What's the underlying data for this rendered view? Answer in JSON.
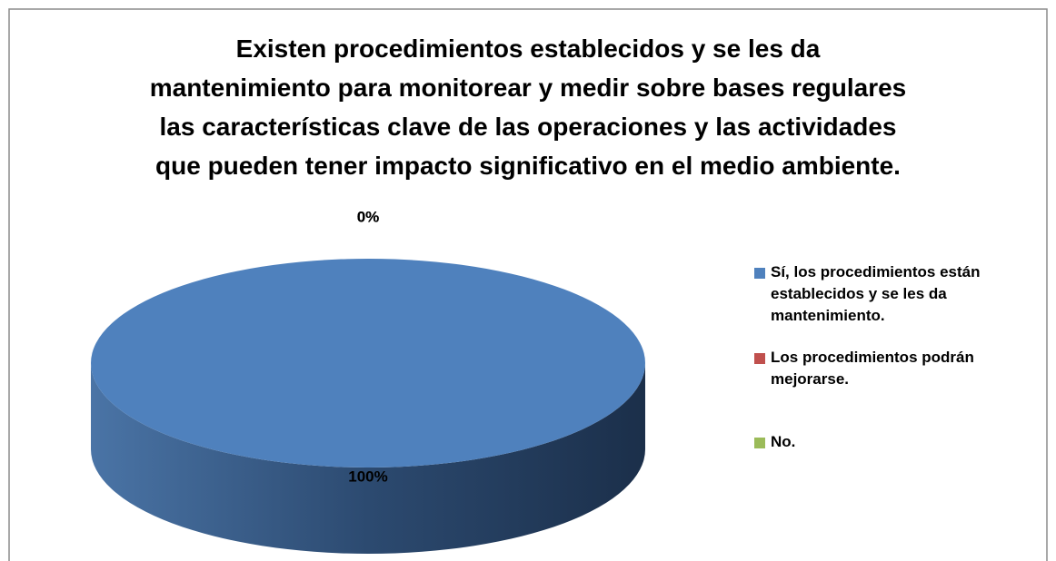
{
  "chart_data": {
    "type": "pie",
    "title": [
      "Existen procedimientos establecidos y se les da",
      "mantenimiento para monitorear y medir sobre bases regulares",
      "las características clave de las operaciones y las actividades",
      "que pueden tener impacto significativo en el medio ambiente."
    ],
    "categories": [
      "Sí, los procedimientos están establecidos y se les da mantenimiento.",
      "Los procedimientos podrán mejorarse.",
      "No."
    ],
    "values": [
      100,
      0,
      0
    ],
    "value_labels": [
      "100%",
      "0%",
      "0%"
    ],
    "colors": [
      "#4f81bd",
      "#c0504d",
      "#9bbb59"
    ],
    "legend": "right"
  }
}
